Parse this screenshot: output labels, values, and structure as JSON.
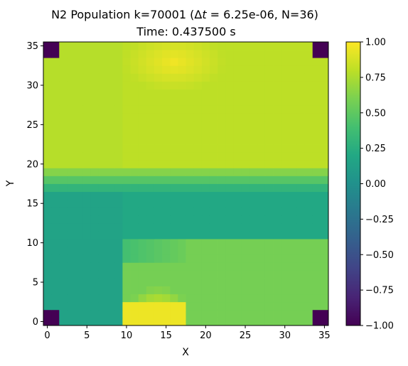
{
  "chart_data": {
    "type": "heatmap",
    "title_line1": "N2 Population k=70001 (",
    "title_delta": "Δ",
    "title_t": "t",
    "title_line1_rest": " = 6.25e-06, N=36)",
    "title_line2": "Time: 0.437500 s",
    "xlabel": "X",
    "ylabel": "Y",
    "xlim": [
      -0.5,
      35.5
    ],
    "ylim": [
      -0.5,
      35.5
    ],
    "x_ticks": [
      "0",
      "5",
      "10",
      "15",
      "20",
      "25",
      "30",
      "35"
    ],
    "y_ticks": [
      "0",
      "5",
      "10",
      "15",
      "20",
      "25",
      "30",
      "35"
    ],
    "colorbar": {
      "range": [
        -1.0,
        1.0
      ],
      "ticks": [
        "1.00",
        "0.75",
        "0.50",
        "0.25",
        "0.00",
        "−0.25",
        "−0.50",
        "−0.75",
        "−1.00"
      ],
      "colormap": "viridis"
    },
    "grid": false,
    "field_description": "36x36 grid; corners (2x2 cells) at -1.0; upper region ~0.8 with a bright ~0.95 blob near x=10-22,y=28-35; horizontal transition band y=17-20; middle band y=11-16 ~0.2; lower-left block x<10,y<11 ~0.15; lower-right ~0.6 with bright ~0.95 block near x=10-17,y=0-4."
  }
}
